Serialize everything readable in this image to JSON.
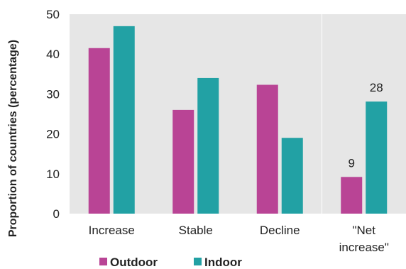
{
  "chart_data": {
    "type": "bar",
    "categories": [
      "Increase",
      "Stable",
      "Decline",
      "\"Net increase\""
    ],
    "category_lines": [
      [
        "Increase"
      ],
      [
        "Stable"
      ],
      [
        "Decline"
      ],
      [
        "\"Net",
        "increase\""
      ]
    ],
    "series": [
      {
        "name": "Outdoor",
        "color": "#b94495",
        "values": [
          41.5,
          26,
          32.3,
          9.2
        ]
      },
      {
        "name": "Indoor",
        "color": "#22a1a4",
        "values": [
          47,
          34,
          19,
          28.1
        ]
      }
    ],
    "data_labels": [
      {
        "series": 0,
        "category": 3,
        "text": "9"
      },
      {
        "series": 1,
        "category": 3,
        "text": "28"
      }
    ],
    "ylabel": "Proportion of countries (percentage)",
    "ylim": [
      0,
      50
    ],
    "yticks": [
      0,
      10,
      20,
      30,
      40,
      50
    ],
    "grid": false,
    "separator_before_category": 3,
    "legend_position": "bottom-left",
    "background": "#e6e6e6"
  }
}
